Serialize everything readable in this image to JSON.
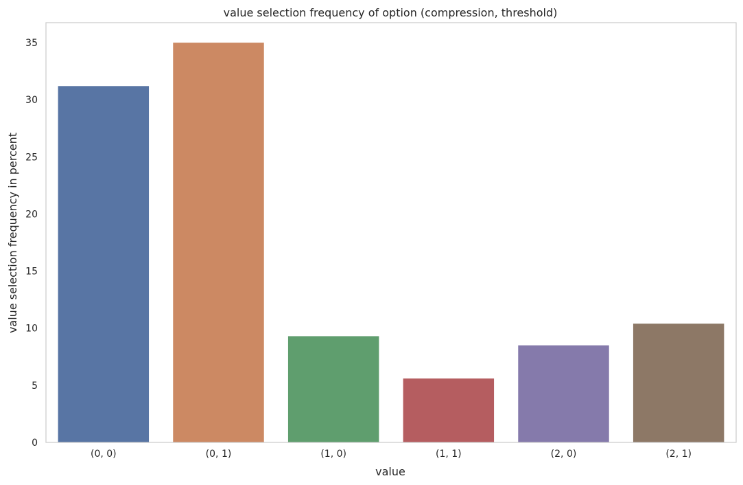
{
  "chart_data": {
    "type": "bar",
    "title": "value selection frequency of option (compression, threshold)",
    "xlabel": "value",
    "ylabel": "value selection frequency in percent",
    "categories": [
      "(0, 0)",
      "(0, 1)",
      "(1, 0)",
      "(1, 1)",
      "(2, 0)",
      "(2, 1)"
    ],
    "values": [
      31.2,
      35.0,
      9.3,
      5.6,
      8.5,
      10.4
    ],
    "colors": [
      "#5875a4",
      "#cc8963",
      "#5f9e6e",
      "#b55d60",
      "#857aab",
      "#8d7866"
    ],
    "ylim": [
      0,
      36.75
    ],
    "yticks": [
      0,
      5,
      10,
      15,
      20,
      25,
      30,
      35
    ],
    "grid": false,
    "legend": "none"
  }
}
